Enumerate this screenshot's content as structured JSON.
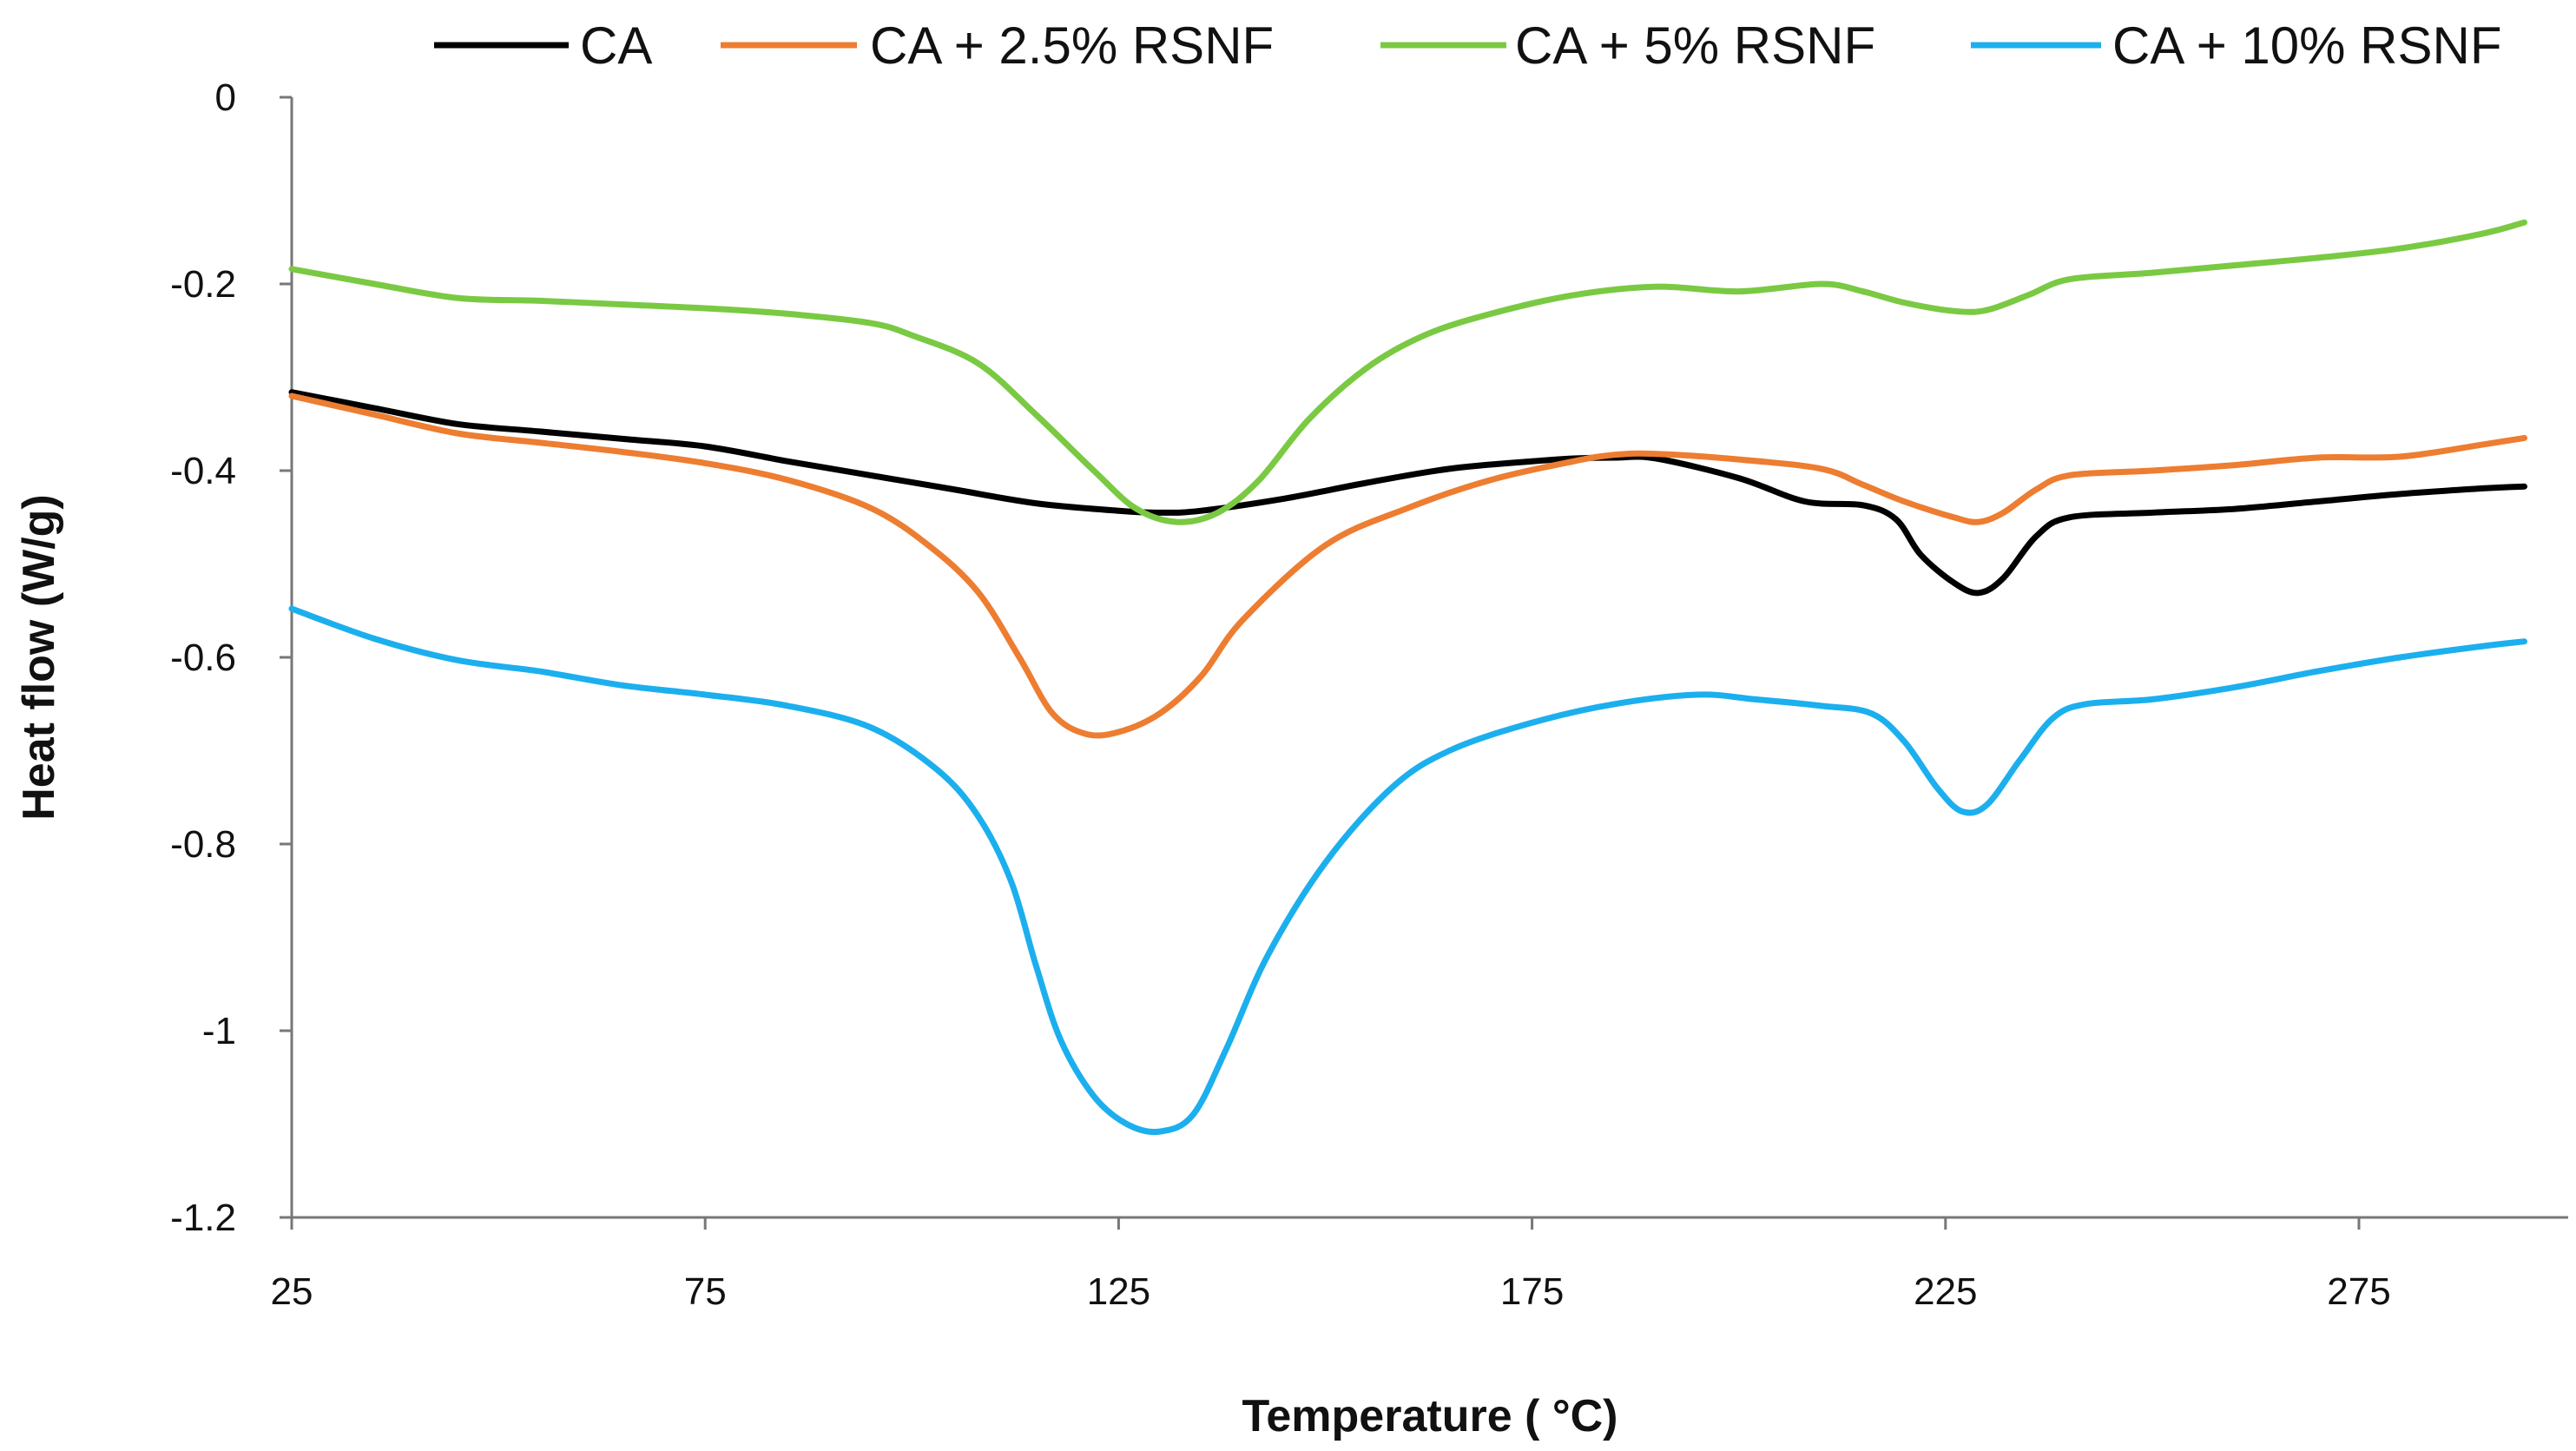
{
  "chart_data": {
    "type": "line",
    "title": "",
    "xlabel": "Temperature ( °C)",
    "ylabel": "Heat flow (W/g)",
    "xlim": [
      25,
      300
    ],
    "ylim": [
      -1.2,
      0
    ],
    "xticks": [
      25,
      75,
      125,
      175,
      225,
      275
    ],
    "xtick_labels": [
      "25",
      "75",
      "125",
      "175",
      "225",
      "275"
    ],
    "yticks": [
      0,
      -0.2,
      -0.4,
      -0.6,
      -0.8,
      -1,
      -1.2
    ],
    "ytick_labels": [
      "0",
      "-0.2",
      "-0.4",
      "-0.6",
      "-0.8",
      "-1",
      "-1.2"
    ],
    "grid": false,
    "legend_position": "top",
    "series": [
      {
        "name": "CA",
        "color": "#000000",
        "points": [
          [
            25,
            -0.316
          ],
          [
            35,
            -0.333
          ],
          [
            45,
            -0.35
          ],
          [
            55,
            -0.358
          ],
          [
            65,
            -0.366
          ],
          [
            75,
            -0.374
          ],
          [
            85,
            -0.39
          ],
          [
            95,
            -0.405
          ],
          [
            105,
            -0.42
          ],
          [
            115,
            -0.435
          ],
          [
            125,
            -0.443
          ],
          [
            130,
            -0.445
          ],
          [
            135,
            -0.443
          ],
          [
            145,
            -0.43
          ],
          [
            155,
            -0.413
          ],
          [
            165,
            -0.398
          ],
          [
            175,
            -0.39
          ],
          [
            180,
            -0.387
          ],
          [
            185,
            -0.386
          ],
          [
            190,
            -0.387
          ],
          [
            200,
            -0.408
          ],
          [
            208,
            -0.433
          ],
          [
            215,
            -0.437
          ],
          [
            219,
            -0.452
          ],
          [
            222,
            -0.49
          ],
          [
            226,
            -0.52
          ],
          [
            229,
            -0.531
          ],
          [
            232,
            -0.515
          ],
          [
            236,
            -0.47
          ],
          [
            240,
            -0.45
          ],
          [
            250,
            -0.445
          ],
          [
            260,
            -0.441
          ],
          [
            270,
            -0.433
          ],
          [
            280,
            -0.425
          ],
          [
            290,
            -0.419
          ],
          [
            295,
            -0.417
          ]
        ]
      },
      {
        "name": "CA + 2.5% RSNF",
        "color": "#ED7D31",
        "points": [
          [
            25,
            -0.32
          ],
          [
            35,
            -0.34
          ],
          [
            45,
            -0.36
          ],
          [
            55,
            -0.37
          ],
          [
            65,
            -0.38
          ],
          [
            75,
            -0.392
          ],
          [
            85,
            -0.41
          ],
          [
            95,
            -0.44
          ],
          [
            102,
            -0.48
          ],
          [
            108,
            -0.53
          ],
          [
            113,
            -0.6
          ],
          [
            117,
            -0.66
          ],
          [
            121,
            -0.682
          ],
          [
            125,
            -0.68
          ],
          [
            130,
            -0.66
          ],
          [
            135,
            -0.62
          ],
          [
            140,
            -0.56
          ],
          [
            150,
            -0.48
          ],
          [
            160,
            -0.44
          ],
          [
            170,
            -0.41
          ],
          [
            180,
            -0.39
          ],
          [
            185,
            -0.383
          ],
          [
            190,
            -0.382
          ],
          [
            200,
            -0.388
          ],
          [
            210,
            -0.398
          ],
          [
            215,
            -0.415
          ],
          [
            220,
            -0.433
          ],
          [
            226,
            -0.45
          ],
          [
            229,
            -0.455
          ],
          [
            232,
            -0.445
          ],
          [
            236,
            -0.42
          ],
          [
            240,
            -0.405
          ],
          [
            250,
            -0.4
          ],
          [
            260,
            -0.394
          ],
          [
            270,
            -0.386
          ],
          [
            280,
            -0.385
          ],
          [
            290,
            -0.372
          ],
          [
            295,
            -0.365
          ]
        ]
      },
      {
        "name": "CA + 5% RSNF",
        "color": "#7AC943",
        "points": [
          [
            25,
            -0.184
          ],
          [
            35,
            -0.2
          ],
          [
            45,
            -0.215
          ],
          [
            55,
            -0.218
          ],
          [
            65,
            -0.222
          ],
          [
            75,
            -0.226
          ],
          [
            85,
            -0.232
          ],
          [
            95,
            -0.242
          ],
          [
            100,
            -0.255
          ],
          [
            108,
            -0.285
          ],
          [
            115,
            -0.34
          ],
          [
            122,
            -0.4
          ],
          [
            127,
            -0.44
          ],
          [
            132,
            -0.455
          ],
          [
            137,
            -0.445
          ],
          [
            142,
            -0.41
          ],
          [
            148,
            -0.345
          ],
          [
            155,
            -0.29
          ],
          [
            162,
            -0.255
          ],
          [
            170,
            -0.232
          ],
          [
            180,
            -0.212
          ],
          [
            190,
            -0.203
          ],
          [
            200,
            -0.208
          ],
          [
            210,
            -0.2
          ],
          [
            215,
            -0.208
          ],
          [
            220,
            -0.22
          ],
          [
            226,
            -0.229
          ],
          [
            230,
            -0.228
          ],
          [
            235,
            -0.212
          ],
          [
            240,
            -0.195
          ],
          [
            250,
            -0.188
          ],
          [
            260,
            -0.18
          ],
          [
            270,
            -0.172
          ],
          [
            280,
            -0.162
          ],
          [
            290,
            -0.146
          ],
          [
            295,
            -0.134
          ]
        ]
      },
      {
        "name": "CA + 10% RSNF",
        "color": "#1CAFEE",
        "points": [
          [
            25,
            -0.548
          ],
          [
            35,
            -0.58
          ],
          [
            45,
            -0.603
          ],
          [
            55,
            -0.615
          ],
          [
            65,
            -0.63
          ],
          [
            75,
            -0.64
          ],
          [
            85,
            -0.652
          ],
          [
            95,
            -0.675
          ],
          [
            103,
            -0.72
          ],
          [
            108,
            -0.77
          ],
          [
            112,
            -0.84
          ],
          [
            115,
            -0.93
          ],
          [
            118,
            -1.01
          ],
          [
            122,
            -1.07
          ],
          [
            126,
            -1.1
          ],
          [
            130,
            -1.108
          ],
          [
            134,
            -1.09
          ],
          [
            138,
            -1.02
          ],
          [
            143,
            -0.92
          ],
          [
            150,
            -0.82
          ],
          [
            158,
            -0.74
          ],
          [
            165,
            -0.7
          ],
          [
            175,
            -0.67
          ],
          [
            185,
            -0.65
          ],
          [
            195,
            -0.64
          ],
          [
            202,
            -0.645
          ],
          [
            210,
            -0.652
          ],
          [
            216,
            -0.66
          ],
          [
            220,
            -0.69
          ],
          [
            224,
            -0.74
          ],
          [
            227,
            -0.765
          ],
          [
            230,
            -0.758
          ],
          [
            234,
            -0.71
          ],
          [
            238,
            -0.665
          ],
          [
            242,
            -0.65
          ],
          [
            250,
            -0.645
          ],
          [
            260,
            -0.632
          ],
          [
            270,
            -0.615
          ],
          [
            280,
            -0.6
          ],
          [
            290,
            -0.588
          ],
          [
            295,
            -0.583
          ]
        ]
      }
    ]
  }
}
